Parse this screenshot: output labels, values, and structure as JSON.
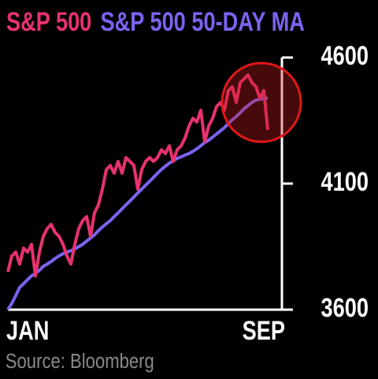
{
  "chart_data": {
    "type": "line",
    "series": [
      {
        "name": "S&P 500",
        "color": "#e8326e",
        "values": [
          3750,
          3813,
          3828,
          3781,
          3844,
          3828,
          3859,
          3734,
          3828,
          3891,
          3922,
          3938,
          3906,
          3891,
          3859,
          3813,
          3781,
          3859,
          3922,
          3953,
          3969,
          3891,
          3984,
          4016,
          4078,
          4156,
          4172,
          4141,
          4188,
          4141,
          4203,
          4188,
          4172,
          4078,
          4156,
          4188,
          4203,
          4188,
          4203,
          4234,
          4219,
          4250,
          4188,
          4234,
          4250,
          4281,
          4328,
          4359,
          4344,
          4391,
          4266,
          4328,
          4359,
          4406,
          4422,
          4391,
          4469,
          4484,
          4422,
          4500,
          4516,
          4531,
          4500,
          4484,
          4438,
          4469,
          4313
        ]
      },
      {
        "name": "S&P 500 50-DAY MA",
        "color": "#7b63f0",
        "values": [
          3600,
          3625,
          3656,
          3688,
          3703,
          3719,
          3734,
          3744,
          3756,
          3772,
          3781,
          3791,
          3803,
          3813,
          3822,
          3828,
          3834,
          3841,
          3850,
          3859,
          3872,
          3884,
          3897,
          3913,
          3928,
          3941,
          3953,
          3969,
          3984,
          4000,
          4016,
          4031,
          4047,
          4063,
          4078,
          4094,
          4109,
          4125,
          4141,
          4156,
          4169,
          4181,
          4191,
          4200,
          4206,
          4213,
          4219,
          4228,
          4238,
          4250,
          4263,
          4272,
          4284,
          4297,
          4309,
          4322,
          4338,
          4353,
          4366,
          4381,
          4397,
          4409,
          4422,
          4431,
          4434,
          4438,
          4438
        ]
      }
    ],
    "categories": [
      "JAN",
      null,
      null,
      null,
      null,
      null,
      null,
      null,
      null,
      null,
      null,
      null,
      null,
      null,
      null,
      null,
      null,
      null,
      null,
      null,
      null,
      null,
      null,
      null,
      null,
      null,
      null,
      null,
      null,
      null,
      null,
      null,
      null,
      null,
      null,
      null,
      null,
      null,
      null,
      null,
      null,
      null,
      null,
      null,
      null,
      null,
      null,
      null,
      null,
      null,
      null,
      null,
      null,
      null,
      null,
      null,
      null,
      null,
      null,
      null,
      null,
      null,
      null,
      null,
      null,
      null,
      "SEP"
    ],
    "ylim": [
      3600,
      4600
    ],
    "yticks": [
      3600,
      4100,
      4600
    ],
    "source": "Source: Bloomberg"
  }
}
